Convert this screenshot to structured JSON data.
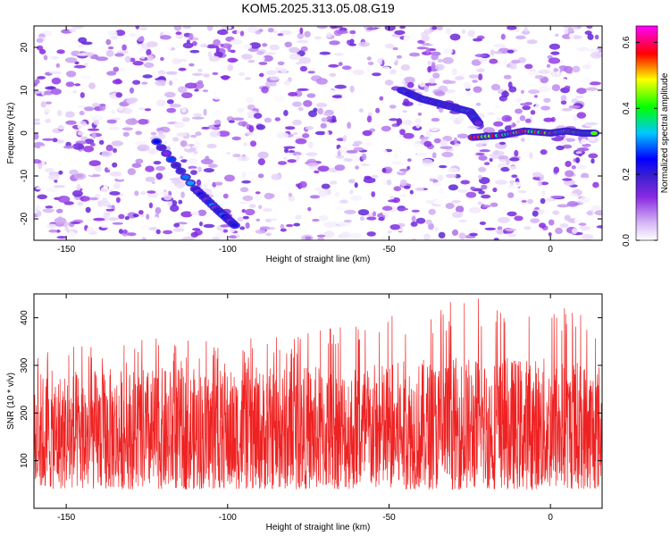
{
  "title": "KOM5.2025.313.05.08.G19",
  "colors": {
    "snr_line": "#ee2222",
    "colormap": [
      "#ffffff",
      "#d6b8f5",
      "#8a2be2",
      "#3b1fd0",
      "#0000ff",
      "#00ffff",
      "#00ff00",
      "#ffff00",
      "#ff0000",
      "#ff00ff"
    ]
  },
  "chart_data": [
    {
      "type": "heatmap",
      "name": "spectrogram",
      "xlabel": "Height of straight line (km)",
      "ylabel": "Frequency (Hz)",
      "xlim": [
        -160,
        16
      ],
      "ylim": [
        -25,
        25
      ],
      "xticks": [
        -150,
        -100,
        -50,
        0
      ],
      "yticks": [
        -20,
        -10,
        0,
        10,
        20
      ],
      "colorbar": {
        "label": "Normalized spectral amplitude",
        "range": [
          0.0,
          0.65
        ],
        "ticks": [
          0.0,
          0.2,
          0.4,
          0.6
        ],
        "tick_labels": [
          "0.0",
          "0.2",
          "0.4",
          "0.6"
        ]
      },
      "features": [
        {
          "description": "descending linear track",
          "x": [
            -122,
            -110,
            -103,
            -97
          ],
          "y": [
            -2,
            -13,
            -18,
            -22
          ],
          "peak_amplitude": 0.3
        },
        {
          "description": "upper track",
          "x": [
            -46,
            -40,
            -35,
            -30,
            -25,
            -22
          ],
          "y": [
            10,
            8,
            7,
            6,
            5,
            2
          ],
          "peak_amplitude": 0.3
        },
        {
          "description": "main signal near 0 Hz",
          "x": [
            -24,
            -15,
            -8,
            0,
            5,
            10,
            14
          ],
          "y": [
            -1,
            -0.5,
            0.5,
            0,
            0.5,
            0,
            0
          ],
          "peak_amplitude": 0.62
        }
      ]
    },
    {
      "type": "line",
      "name": "snr",
      "xlabel": "Height of straight line (km)",
      "ylabel": "SNR (10 * v/v)",
      "xlim": [
        -160,
        16
      ],
      "ylim": [
        0,
        450
      ],
      "xticks": [
        -150,
        -100,
        -50,
        0
      ],
      "yticks": [
        100,
        200,
        300,
        400
      ],
      "series": [
        {
          "name": "SNR",
          "baseline": 140,
          "spread_low": 40,
          "spread_high": 320,
          "envelope": [
            {
              "x": -160,
              "max": 330
            },
            {
              "x": -130,
              "max": 360
            },
            {
              "x": -100,
              "max": 350
            },
            {
              "x": -60,
              "max": 390
            },
            {
              "x": -25,
              "max": 445
            },
            {
              "x": 0,
              "max": 440
            },
            {
              "x": 16,
              "max": 410
            }
          ]
        }
      ]
    }
  ]
}
